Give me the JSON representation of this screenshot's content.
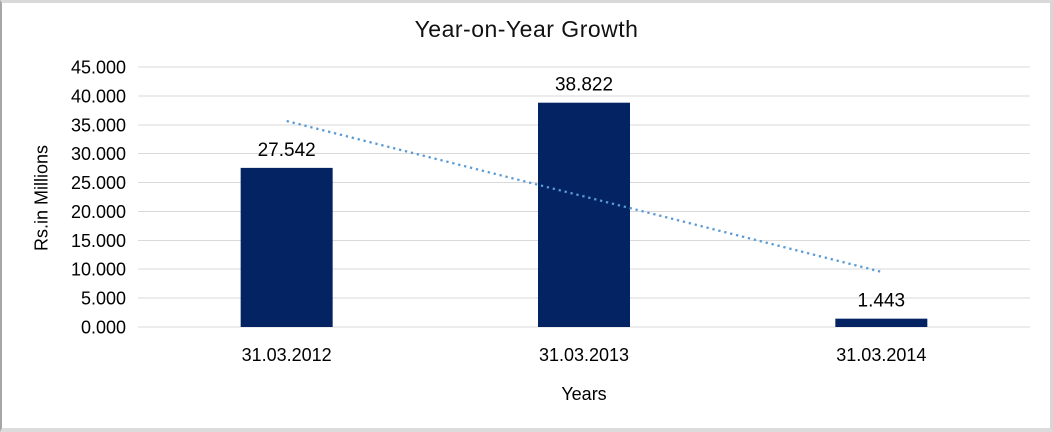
{
  "chart_data": {
    "type": "bar",
    "title": "Year-on-Year Growth",
    "xlabel": "Years",
    "ylabel": "Rs.in Millions",
    "categories": [
      "31.03.2012",
      "31.03.2013",
      "31.03.2014"
    ],
    "values": [
      27.542,
      38.822,
      1.443
    ],
    "value_labels": [
      "27.542",
      "38.822",
      "1.443"
    ],
    "y_ticks": [
      "45.000",
      "40.000",
      "35.000",
      "30.000",
      "25.000",
      "20.000",
      "15.000",
      "10.000",
      "5.000",
      "0.000"
    ],
    "ylim": [
      0,
      45
    ],
    "y_step": 5,
    "grid": "horizontal",
    "legend": "none",
    "trendline": {
      "type": "linear",
      "style": "dotted",
      "start_value": 35.65,
      "end_value": 9.55
    }
  },
  "colors": {
    "bar": "#042363",
    "trendline": "#5b9bd5",
    "gridline": "#d9d9d9",
    "axis_line": "#d9d9d9",
    "text": "#000000",
    "background": "#ffffff",
    "frame_border": "#d9d9d9"
  }
}
